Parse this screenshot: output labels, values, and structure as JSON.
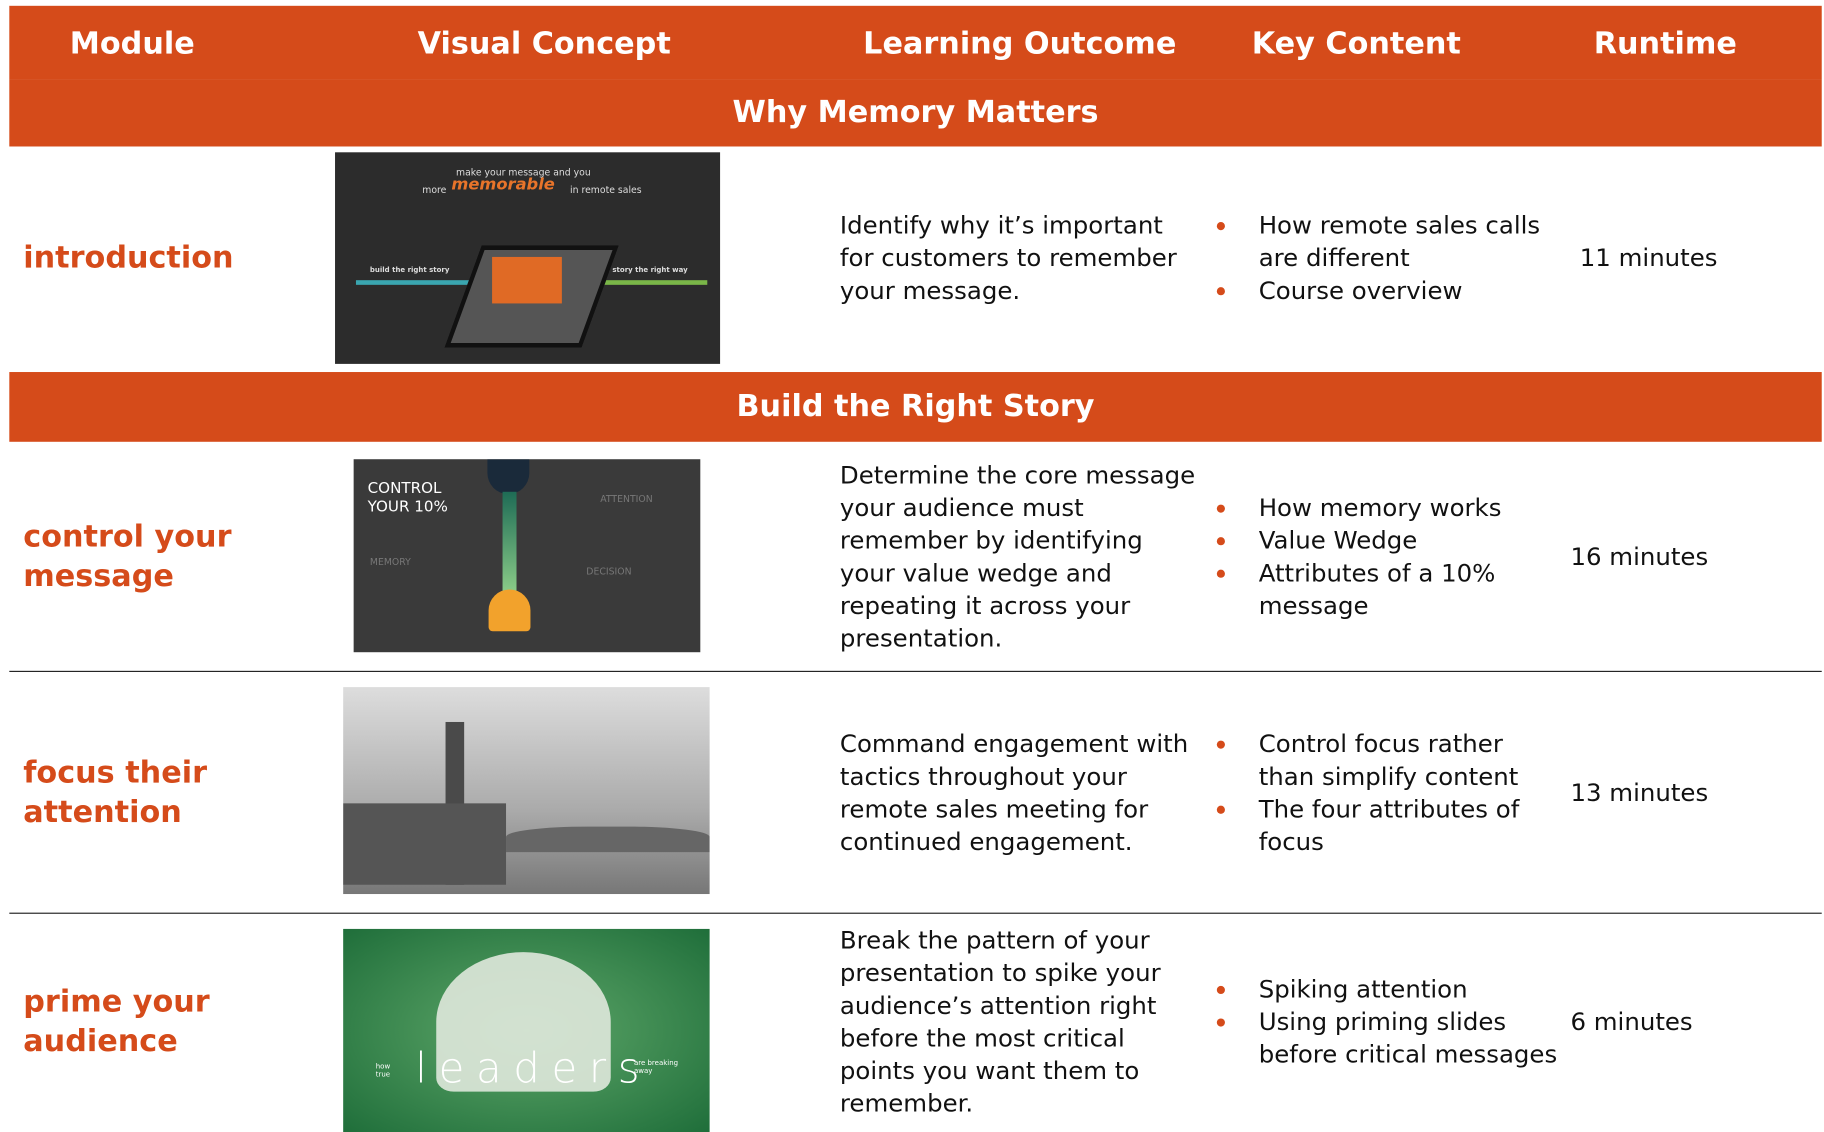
{
  "header": {
    "columns": [
      "Module",
      "Visual Concept",
      "Learning Outcome",
      "Key Content",
      "Runtime"
    ]
  },
  "sections": [
    {
      "title": "Why Memory Matters",
      "rows": [
        {
          "module": "introduction",
          "visual": {
            "texts": [
              "make your message and you",
              "more",
              "memorable",
              "in remote sales",
              "build the right story",
              "tell the story the right way"
            ]
          },
          "outcome": "Identify why it’s important for customers to remember your message.",
          "key_points": [
            "How remote sales calls are different",
            "Course overview"
          ],
          "runtime": "11 minutes"
        }
      ]
    },
    {
      "title": "Build the Right Story",
      "rows": [
        {
          "module": "control your message",
          "visual": {
            "texts": [
              "CONTROL YOUR 10%",
              "ATTENTION",
              "MEMORY",
              "DECISION"
            ]
          },
          "outcome": "Determine the core message your audience must remember by identifying your value wedge and repeating it across your presentation.",
          "key_points": [
            "How memory works",
            "Value Wedge",
            "Attributes of a 10% message"
          ],
          "runtime": "16 minutes"
        },
        {
          "module": "focus their attention",
          "outcome": "Command engagement with tactics throughout your remote sales meeting for continued engagement.",
          "key_points": [
            "Control focus rather than simplify content",
            "The four attributes of focus"
          ],
          "runtime": "13 minutes"
        },
        {
          "module": "prime your audience",
          "visual": {
            "texts": [
              "how true",
              "leaders",
              "are breaking away"
            ]
          },
          "outcome": "Break the pattern of your presentation to spike your audience’s attention right before the most critical points you want them to remember.",
          "key_points": [
            "Spiking attention",
            "Using priming slides before critical messages"
          ],
          "runtime": "6 minutes"
        }
      ]
    }
  ]
}
